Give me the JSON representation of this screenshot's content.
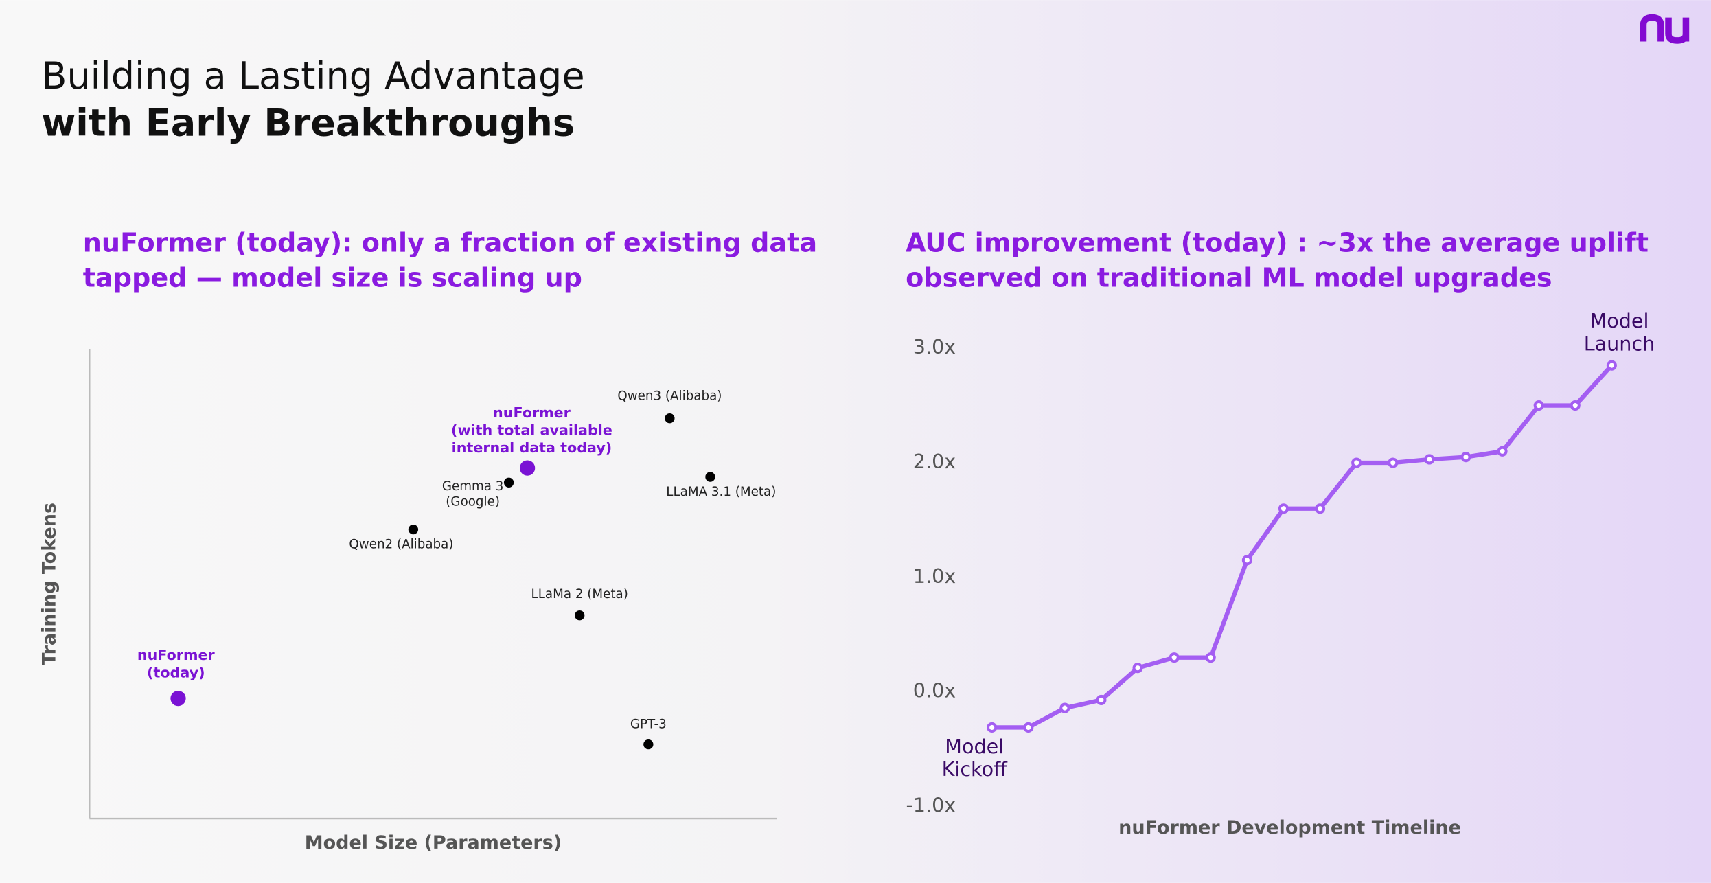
{
  "title": [
    "Building a Lasting Advantage",
    "with Early Breakthroughs"
  ],
  "chart_data": [
    {
      "type": "scatter",
      "title": [
        "nuFormer (today): only a fraction of existing data",
        "tapped — model size is scaling up"
      ],
      "x_label": "Model Size (Parameters)",
      "y_label": "Training Tokens",
      "xlim": [
        0,
        100
      ],
      "ylim": [
        0,
        100
      ],
      "labels": [
        [
          "nuFormer",
          "(today)"
        ],
        [
          "nuFormer",
          "(with total available",
          "internal data today)"
        ],
        [
          "Qwen3 (Alibaba)"
        ],
        [
          "LLaMA 3.1 (Meta)"
        ],
        [
          "Gemma 3",
          "(Google)"
        ],
        [
          "Qwen2 (Alibaba)"
        ],
        [
          "LLaMa 2 (Meta)"
        ],
        [
          "GPT-3"
        ]
      ],
      "x": [
        12.9,
        63.7,
        84.4,
        90.3,
        61.0,
        47.1,
        71.3,
        81.3
      ],
      "y": [
        25.6,
        74.7,
        85.3,
        72.8,
        71.6,
        61.6,
        43.3,
        15.8
      ],
      "colors": [
        "#7a12d4",
        "#7a12d4",
        "#000000",
        "#000000",
        "#000000",
        "#000000",
        "#000000",
        "#000000"
      ]
    },
    {
      "type": "line",
      "title": [
        "AUC improvement (today) : ~3x the average uplift",
        "observed on traditional ML model upgrades"
      ],
      "x_label": "nuFormer Development Timeline",
      "categories": [
        null,
        null,
        null,
        null,
        null,
        null,
        null,
        null,
        null,
        null,
        null,
        null,
        null,
        null,
        null,
        null,
        null,
        null
      ],
      "values": [
        -0.31,
        -0.31,
        -0.14,
        -0.07,
        0.21,
        0.3,
        0.3,
        1.15,
        1.6,
        1.6,
        2.0,
        2.0,
        2.03,
        2.05,
        2.1,
        2.5,
        2.5,
        2.85
      ],
      "color": "#a45ef2",
      "ylim": [
        -1,
        3
      ],
      "yticks": [
        {
          "value": -1,
          "label": "-1.0x"
        },
        {
          "value": 0,
          "label": "0.0x"
        },
        {
          "value": 1,
          "label": "1.0x"
        },
        {
          "value": 2,
          "label": "2.0x"
        },
        {
          "value": 3,
          "label": "3.0x"
        }
      ],
      "annotations": [
        [
          "Model",
          "Kickoff"
        ],
        [
          "Model",
          "Launch"
        ]
      ]
    }
  ]
}
